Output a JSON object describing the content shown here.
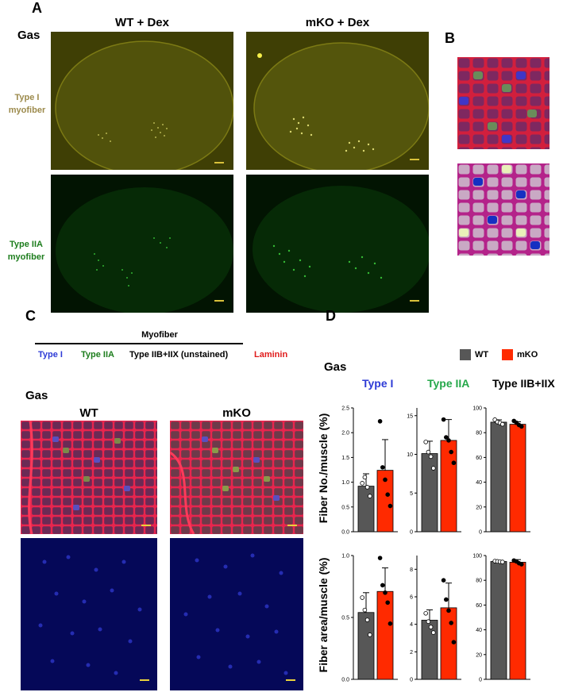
{
  "panels": {
    "A": {
      "letter": "A",
      "muscle": "Gas",
      "col_wt": "WT + Dex",
      "col_mko": "mKO + Dex",
      "row1_label_l1": "Type I",
      "row1_label_l2": "myofiber",
      "row2_label_l1": "Type IIA",
      "row2_label_l2": "myofiber"
    },
    "B": {
      "letter": "B"
    },
    "C": {
      "letter": "C",
      "myofiber": "Myofiber",
      "type1": "Type I",
      "type2a": "Type IIA",
      "type2bx": "Type IIB+IIX (unstained)",
      "laminin": "Laminin",
      "muscle": "Gas",
      "col_wt": "WT",
      "col_mko": "mKO"
    },
    "D": {
      "letter": "D",
      "muscle": "Gas",
      "legend_wt": "WT",
      "legend_mko": "mKO",
      "col_type1": "Type I",
      "col_type2a": "Type IIA",
      "col_type2bx": "Type IIB+IIX",
      "ylabel_top": "Fiber No./muscle (%)",
      "ylabel_bottom": "Fiber area/muscle (%)"
    }
  },
  "colors": {
    "wt": "#575757",
    "mko": "#ff2a00",
    "type1": "#2e3bd6",
    "type2a": "#25a84a",
    "laminin": "#e01b1b"
  },
  "chart_data": [
    {
      "type": "bar",
      "categories": [
        "WT",
        "mKO"
      ],
      "values": [
        0.92,
        1.24
      ],
      "errors": [
        0.25,
        0.62
      ],
      "points": [
        [
          0.98,
          1.1,
          0.9,
          0.72
        ],
        [
          2.23,
          1.3,
          1.05,
          0.75,
          0.52
        ]
      ],
      "ylim": [
        0,
        2.5
      ],
      "yticks": [
        "0.0",
        "0.5",
        "1.0",
        "1.5",
        "2.0",
        "2.5"
      ],
      "column": "Type I",
      "metric": "Fiber No./muscle (%)"
    },
    {
      "type": "bar",
      "categories": [
        "WT",
        "mKO"
      ],
      "values": [
        10.1,
        11.8
      ],
      "errors": [
        1.6,
        2.7
      ],
      "points": [
        [
          11.6,
          10.3,
          9.7,
          8.2
        ],
        [
          14.5,
          12.2,
          11.8,
          10.3,
          8.9
        ]
      ],
      "ylim": [
        0,
        16
      ],
      "yticks": [
        "0",
        "5",
        "10",
        "15"
      ],
      "column": "Type IIA",
      "metric": "Fiber No./muscle (%)"
    },
    {
      "type": "bar",
      "categories": [
        "WT",
        "mKO"
      ],
      "values": [
        88.5,
        86.8
      ],
      "errors": [
        1.9,
        2.0
      ],
      "points": [
        [
          90.5,
          88.6,
          87.9,
          86.8
        ],
        [
          89.5,
          88.0,
          86.2,
          85.0
        ]
      ],
      "ylim": [
        0,
        100
      ],
      "yticks": [
        "0",
        "20",
        "40",
        "60",
        "80",
        "100"
      ],
      "column": "Type IIB+IIX",
      "metric": "Fiber No./muscle (%)"
    },
    {
      "type": "bar",
      "categories": [
        "WT",
        "mKO"
      ],
      "values": [
        0.54,
        0.71
      ],
      "errors": [
        0.16,
        0.19
      ],
      "points": [
        [
          0.66,
          0.56,
          0.48,
          0.36
        ],
        [
          0.98,
          0.76,
          0.7,
          0.62,
          0.45
        ]
      ],
      "ylim": [
        0,
        1.0
      ],
      "yticks": [
        "0.0",
        "0.5",
        "1.0"
      ],
      "column": "Type I",
      "metric": "Fiber area/muscle (%)"
    },
    {
      "type": "bar",
      "categories": [
        "WT",
        "mKO"
      ],
      "values": [
        4.3,
        5.2
      ],
      "errors": [
        0.75,
        1.8
      ],
      "points": [
        [
          4.8,
          4.2,
          3.8,
          3.4
        ],
        [
          7.2,
          5.8,
          5.0,
          4.1,
          2.7
        ]
      ],
      "ylim": [
        0,
        9
      ],
      "yticks": [
        "0",
        "2",
        "4",
        "6",
        "8"
      ],
      "column": "Type IIA",
      "metric": "Fiber area/muscle (%)"
    },
    {
      "type": "bar",
      "categories": [
        "WT",
        "mKO"
      ],
      "values": [
        95.2,
        94.6
      ],
      "errors": [
        0.8,
        2.1
      ],
      "points": [
        [
          95.5,
          95.3,
          95.0,
          94.8
        ],
        [
          96.0,
          95.2,
          93.8,
          92.9
        ]
      ],
      "ylim": [
        0,
        100
      ],
      "yticks": [
        "0",
        "20",
        "40",
        "60",
        "80",
        "100"
      ],
      "column": "Type IIB+IIX",
      "metric": "Fiber area/muscle (%)"
    }
  ]
}
